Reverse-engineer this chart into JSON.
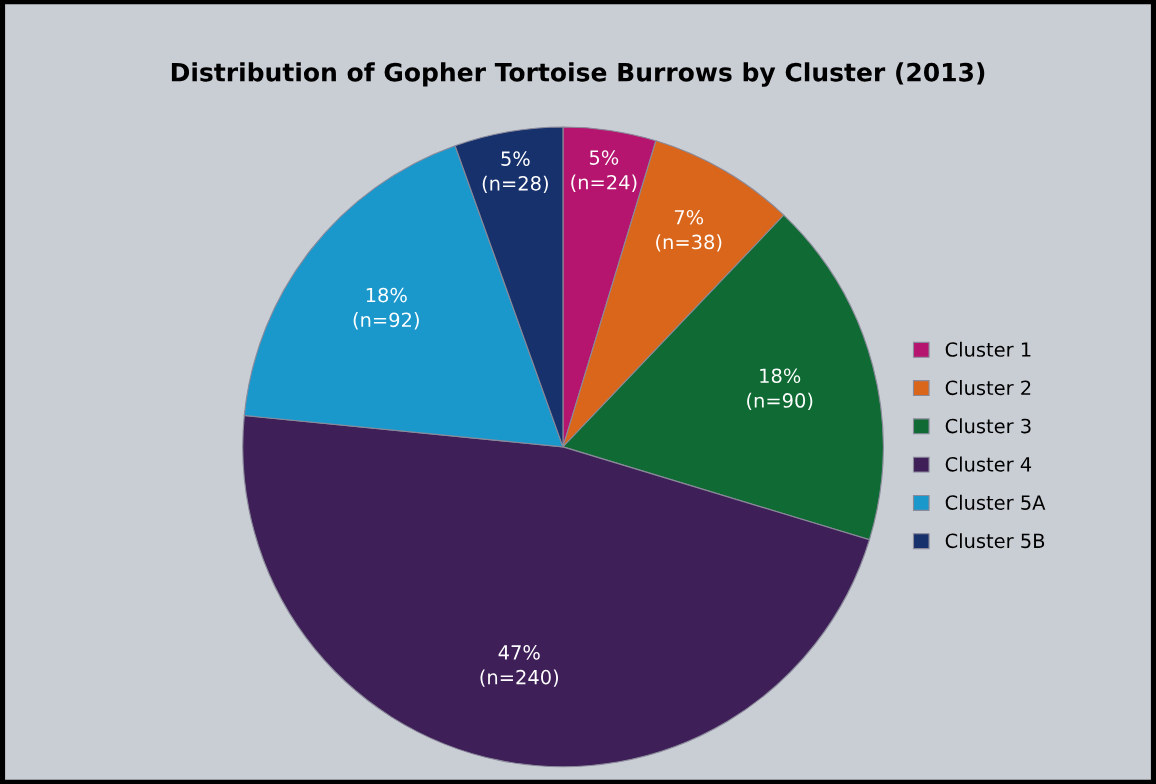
{
  "chart_data": {
    "type": "pie",
    "title": "Distribution of Gopher Tortoise Burrows by Cluster (2013)",
    "categories": [
      "Cluster 1",
      "Cluster 2",
      "Cluster 3",
      "Cluster 4",
      "Cluster 5A",
      "Cluster 5B"
    ],
    "values": [
      24,
      38,
      90,
      240,
      92,
      28
    ],
    "value_labels": [
      "5%\n(n=24)",
      "7%\n(n=38)",
      "18%\n(n=90)",
      "47%\n(n=240)",
      "18%\n(n=92)",
      "5%\n(n=28)"
    ],
    "colors": [
      "#b5156f",
      "#d9661b",
      "#0f6b33",
      "#3f1f58",
      "#1a98cc",
      "#17316c"
    ],
    "legend": "right"
  }
}
